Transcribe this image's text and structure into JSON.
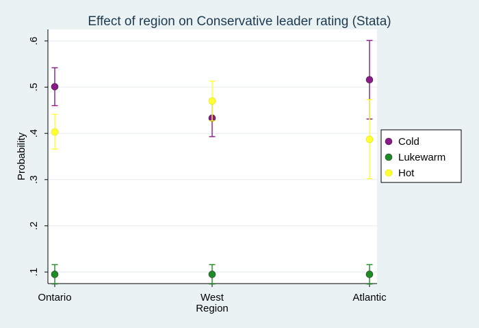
{
  "chart_data": {
    "type": "scatter",
    "title": "Effect of region on Conservative leader rating (Stata)",
    "xlabel": "Region",
    "ylabel": "Probability",
    "categories": [
      "Ontario",
      "West",
      "Atlantic"
    ],
    "ylim": [
      0.075,
      0.625
    ],
    "yticks": [
      0.1,
      0.2,
      0.3,
      0.4,
      0.5,
      0.6
    ],
    "ytick_labels": [
      ".1",
      ".2",
      ".3",
      ".4",
      ".5",
      ".6"
    ],
    "grid": true,
    "legend_position": "right",
    "series": [
      {
        "name": "Cold",
        "color": "#8b1a89",
        "values": [
          0.501,
          0.433,
          0.516
        ],
        "lower": [
          0.46,
          0.393,
          0.431
        ],
        "upper": [
          0.542,
          0.474,
          0.601
        ]
      },
      {
        "name": "Lukewarm",
        "color": "#1c8c24",
        "values": [
          0.095,
          0.095,
          0.095
        ],
        "lower": [
          0.074,
          0.074,
          0.074
        ],
        "upper": [
          0.116,
          0.116,
          0.116
        ]
      },
      {
        "name": "Hot",
        "color": "#ffff33",
        "values": [
          0.403,
          0.47,
          0.387
        ],
        "lower": [
          0.366,
          0.427,
          0.302
        ],
        "upper": [
          0.441,
          0.513,
          0.473
        ]
      }
    ]
  }
}
